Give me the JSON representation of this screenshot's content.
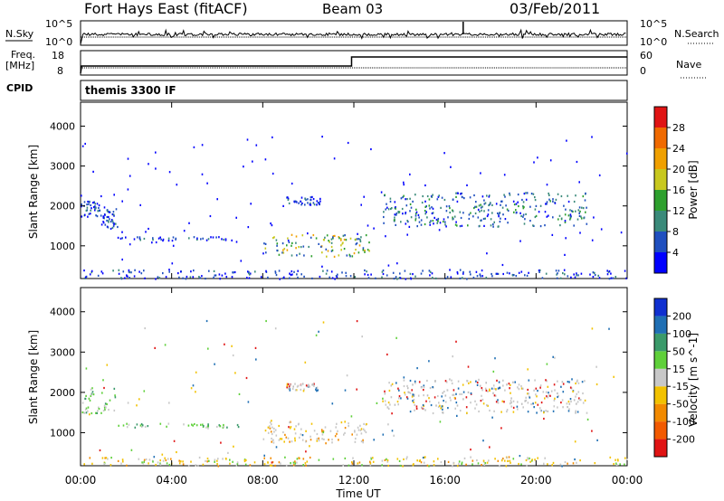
{
  "header": {
    "station": "Fort Hays East (fitACF)",
    "beam": "Beam 03",
    "date": "03/Feb/2011"
  },
  "noise_panel": {
    "left_label": "N.Sky",
    "right_label": "N.Search",
    "left_ticks": [
      "10^5",
      "10^0"
    ],
    "right_ticks": [
      "10^5",
      "10^0"
    ]
  },
  "freq_panel": {
    "left_label_1": "Freq.",
    "left_label_2": "[MHz]",
    "right_label": "Nave",
    "left_ticks": [
      "18",
      "8"
    ],
    "right_ticks": [
      "60",
      "0"
    ],
    "cpid_label": "CPID",
    "cpid_name": "themis 3300 IF"
  },
  "chart_data": [
    {
      "type": "heatmap",
      "title": "",
      "ylabel": "Slant Range [km]",
      "xlabel": "Time UT",
      "x_ticks": [
        "00:00",
        "04:00",
        "08:00",
        "12:00",
        "16:00",
        "20:00",
        "00:00"
      ],
      "y_ticks": [
        "1000",
        "2000",
        "3000",
        "4000"
      ],
      "ylim": [
        180,
        4600
      ],
      "xlim_hours": [
        0,
        24
      ],
      "colorbar": {
        "label": "Power [dB]",
        "ticks": [
          "4",
          "8",
          "12",
          "16",
          "20",
          "24",
          "28"
        ],
        "colors": [
          "#0000ff",
          "#1f4fbf",
          "#3a8a7a",
          "#2ea02e",
          "#c8c81e",
          "#f0a000",
          "#f06a00",
          "#e01414"
        ]
      },
      "scatter_regions": [
        {
          "t0": 0.0,
          "t1": 0.9,
          "r0": 1750,
          "r1": 2150,
          "color": "Blue"
        },
        {
          "t0": 0.9,
          "t1": 1.6,
          "r0": 1450,
          "r1": 1950,
          "color": "Blue"
        },
        {
          "t0": 1.6,
          "t1": 7.0,
          "r0": 1150,
          "r1": 1250,
          "color": "Blue"
        },
        {
          "t0": 9.0,
          "t1": 10.5,
          "r0": 2050,
          "r1": 2250,
          "color": "Blue"
        },
        {
          "t0": 8.0,
          "t1": 12.7,
          "r0": 750,
          "r1": 1300,
          "color": "Green-Yellow"
        },
        {
          "t0": 13.2,
          "t1": 22.2,
          "r0": 1500,
          "r1": 2350,
          "color": "Blue-Green"
        },
        {
          "t0": 0.0,
          "t1": 24.0,
          "r0": 190,
          "r1": 420,
          "color": "Blue"
        }
      ]
    },
    {
      "type": "heatmap",
      "title": "",
      "ylabel": "Slant Range [km]",
      "xlabel": "Time UT",
      "x_ticks": [
        "00:00",
        "04:00",
        "08:00",
        "12:00",
        "16:00",
        "20:00",
        "00:00"
      ],
      "y_ticks": [
        "1000",
        "2000",
        "3000",
        "4000"
      ],
      "ylim": [
        180,
        4600
      ],
      "xlim_hours": [
        0,
        24
      ],
      "colorbar": {
        "label": "Velocity [m s^-1]",
        "ticks": [
          "200",
          "100",
          "50",
          "15",
          "-15",
          "-50",
          "-100",
          "-200"
        ],
        "colors": [
          "#1030d0",
          "#1f6fb4",
          "#3a9a6a",
          "#5fd03a",
          "#c8c8c8",
          "#f2c200",
          "#f28a00",
          "#f25a00",
          "#e01414"
        ]
      },
      "scatter_regions": [
        {
          "t0": 0.0,
          "t1": 1.6,
          "r0": 1500,
          "r1": 2150,
          "color": "Green"
        },
        {
          "t0": 1.6,
          "t1": 7.0,
          "r0": 1150,
          "r1": 1250,
          "color": "Green"
        },
        {
          "t0": 9.0,
          "t1": 10.5,
          "r0": 2050,
          "r1": 2250,
          "color": "Gray"
        },
        {
          "t0": 8.0,
          "t1": 12.7,
          "r0": 750,
          "r1": 1300,
          "color": "Gray-Orange"
        },
        {
          "t0": 13.2,
          "t1": 22.2,
          "r0": 1500,
          "r1": 2350,
          "color": "Gray"
        },
        {
          "t0": 0.0,
          "t1": 24.0,
          "r0": 190,
          "r1": 420,
          "color": "Orange"
        }
      ]
    }
  ]
}
